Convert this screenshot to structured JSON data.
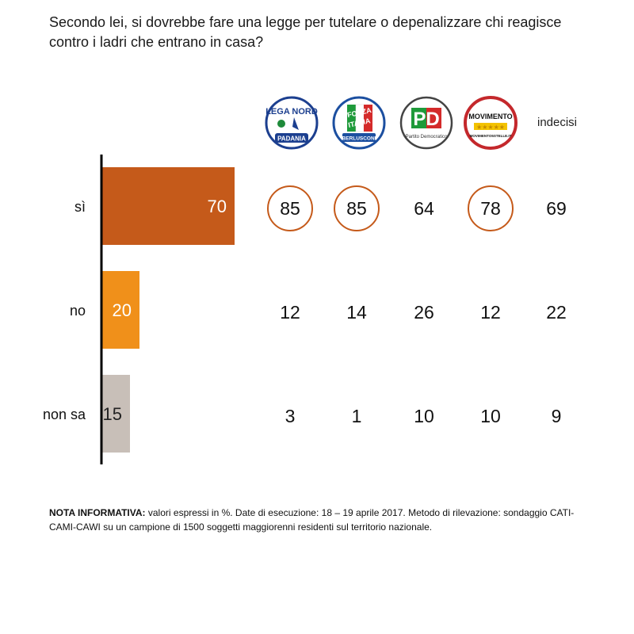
{
  "title": "Secondo lei, si dovrebbe fare una legge per tutelare o depenalizzare chi reagisce contro i ladri che entrano in casa?",
  "columns": [
    {
      "id": "lega",
      "logo": "lega-nord-logo",
      "label": ""
    },
    {
      "id": "forza",
      "logo": "forza-italia-logo",
      "label": ""
    },
    {
      "id": "pd",
      "logo": "partito-democratico-logo",
      "label": ""
    },
    {
      "id": "m5s",
      "logo": "movimento-5-stelle-logo",
      "label": ""
    },
    {
      "id": "indecisi",
      "logo": "",
      "label": "indecisi"
    }
  ],
  "logos": {
    "lega": {
      "top": "LEGA NORD",
      "bottom": "PADANIA"
    },
    "forza": {
      "top": "FORZA",
      "middle": "ITALIA",
      "bottom": "BERLUSCONI"
    },
    "pd": {
      "top": "PD",
      "bottom": "Partito Democratico"
    },
    "m5s": {
      "top": "MOVIMENTO",
      "bottom": "MOVIMENTO5STELLE.IT"
    }
  },
  "colors": {
    "si": "#c55a1a",
    "no": "#f0901a",
    "non_sa": "#c8bfb8",
    "circle": "#c55a1a",
    "axis": "#000000"
  },
  "chart_data": {
    "type": "bar",
    "orientation": "horizontal",
    "categories": [
      "sì",
      "no",
      "non sa"
    ],
    "values": [
      70,
      20,
      15
    ],
    "table": {
      "columns": [
        "lega",
        "forza",
        "pd",
        "m5s",
        "indecisi"
      ],
      "rows": [
        {
          "category": "sì",
          "values": [
            85,
            85,
            64,
            78,
            69
          ],
          "highlighted": [
            true,
            true,
            false,
            true,
            false
          ]
        },
        {
          "category": "no",
          "values": [
            12,
            14,
            26,
            12,
            22
          ],
          "highlighted": [
            false,
            false,
            false,
            false,
            false
          ]
        },
        {
          "category": "non sa",
          "values": [
            3,
            1,
            10,
            10,
            9
          ],
          "highlighted": [
            false,
            false,
            false,
            false,
            false
          ]
        }
      ]
    }
  },
  "note": {
    "label": "NOTA INFORMATIVA:",
    "text": " valori espressi in %. Date di esecuzione: 18 – 19 aprile 2017. Metodo di rilevazione: sondaggio CATI-CAMI-CAWI su un campione di 1500 soggetti maggiorenni residenti sul territorio nazionale."
  }
}
